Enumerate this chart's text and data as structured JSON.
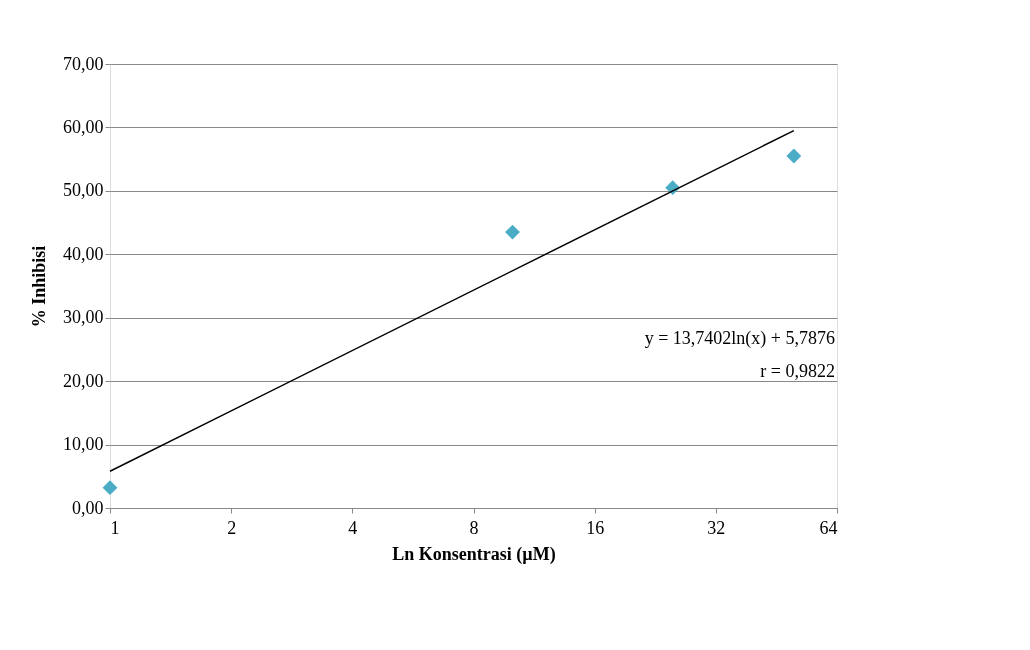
{
  "chart_data": {
    "type": "scatter",
    "xlabel": "Ln Konsentrasi (µM)",
    "ylabel": "% Inhibisi",
    "log": "x",
    "grid": "y",
    "xlim": [
      1,
      64
    ],
    "xticks": [
      1,
      2,
      4,
      8,
      16,
      32,
      64
    ],
    "ylim": [
      0,
      70
    ],
    "yticks": [
      {
        "value": 0,
        "label": "0,00"
      },
      {
        "value": 10,
        "label": "10,00"
      },
      {
        "value": 20,
        "label": "20,00"
      },
      {
        "value": 30,
        "label": "30,00"
      },
      {
        "value": 40,
        "label": "40,00"
      },
      {
        "value": 50,
        "label": "50,00"
      },
      {
        "value": 60,
        "label": "60,00"
      },
      {
        "value": 70,
        "label": "70,00"
      }
    ],
    "series": [
      {
        "color": "#4bacc6",
        "marker": "diamond",
        "x": [
          1,
          10,
          25,
          50
        ],
        "values": [
          3.2,
          43.5,
          50.5,
          55.5
        ]
      },
      {
        "type": "line",
        "marker": "none",
        "color": "#000000",
        "x": [
          1,
          50
        ],
        "values": [
          5.8,
          59.5
        ]
      }
    ],
    "annotations": [
      "y = 13,7402ln(x) + 5,7876",
      "r = 0,9822"
    ]
  }
}
